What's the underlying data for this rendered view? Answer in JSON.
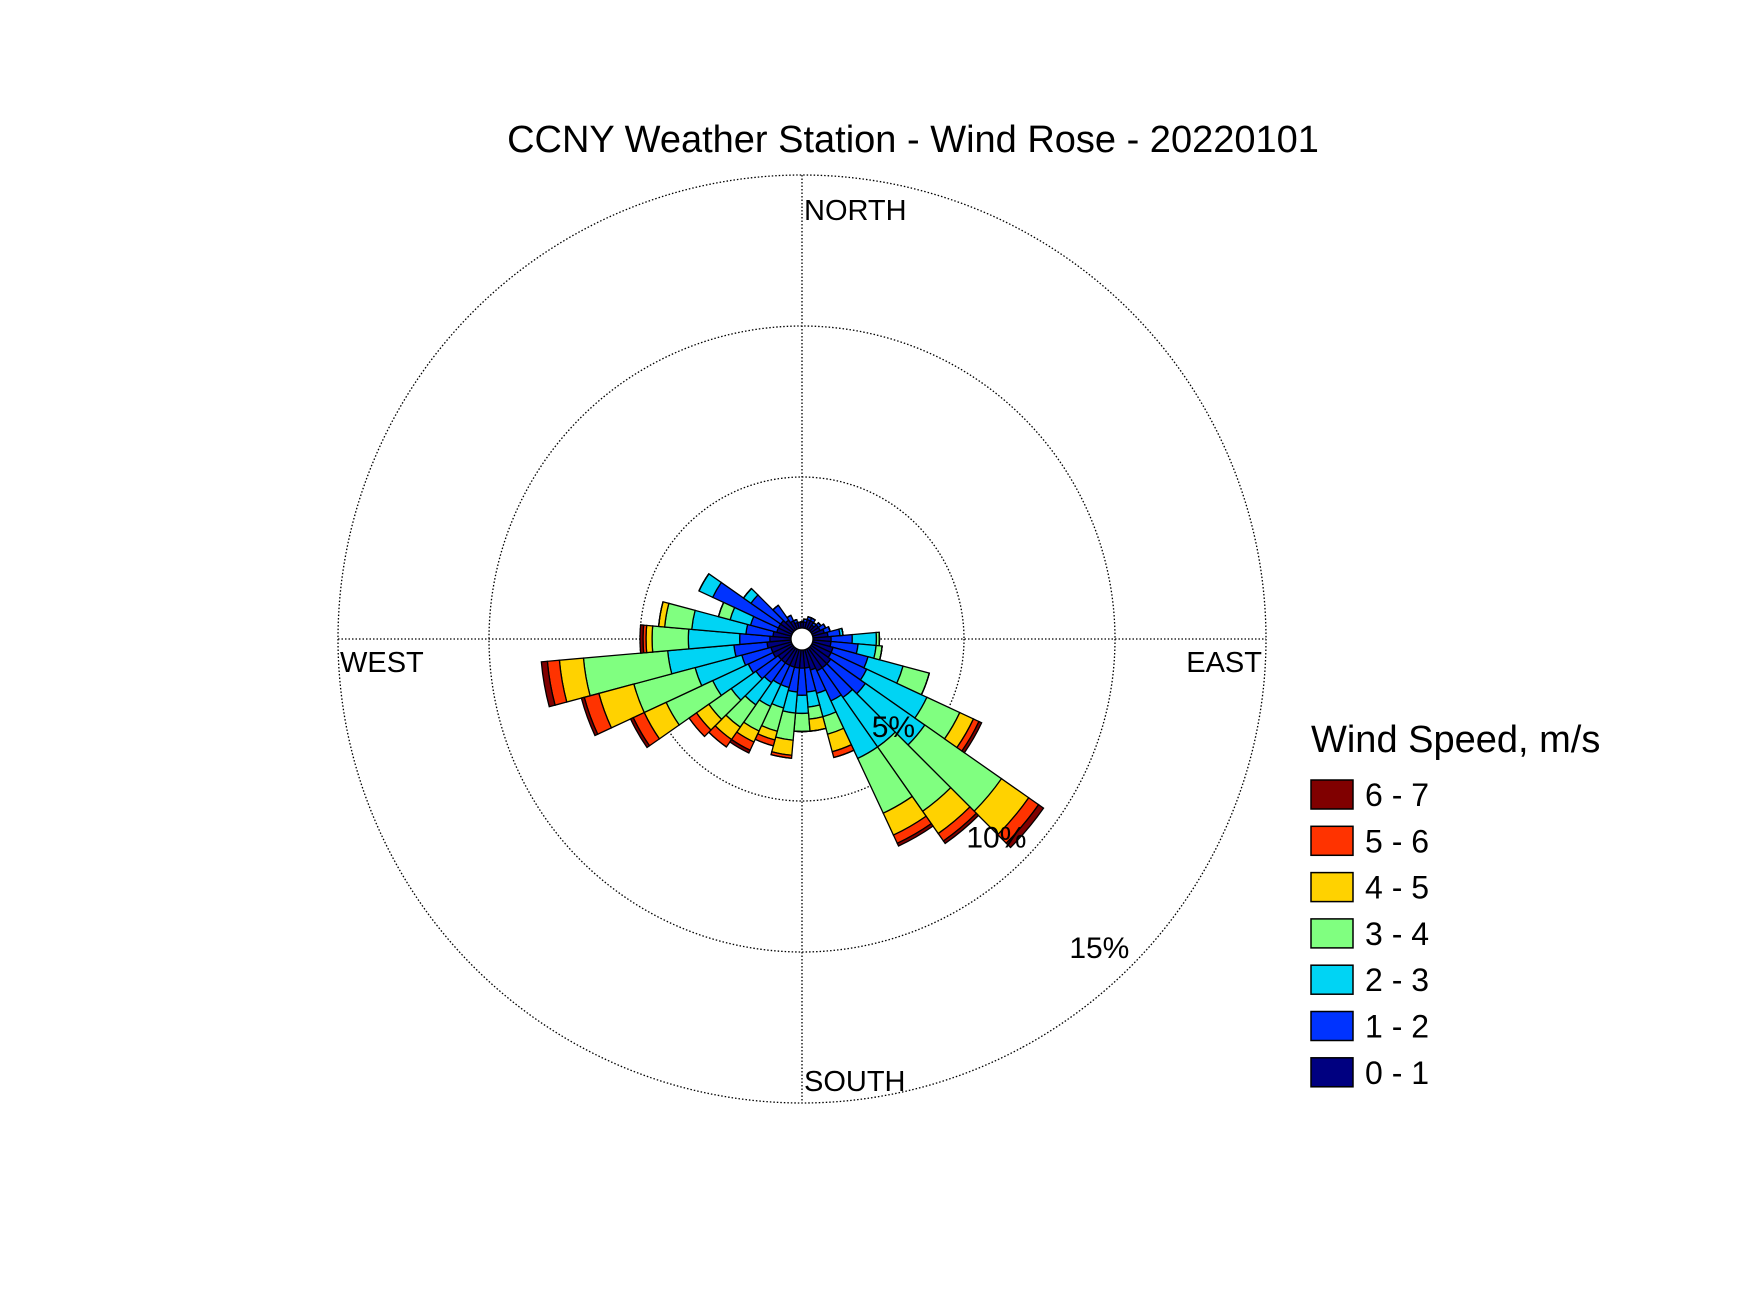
{
  "chart_data": {
    "type": "windrose",
    "title": "CCNY Weather Station - Wind Rose - 20220101",
    "cardinals": [
      "NORTH",
      "EAST",
      "SOUTH",
      "WEST"
    ],
    "legend_title": "Wind Speed, m/s",
    "directions": [
      0,
      10,
      20,
      30,
      40,
      50,
      60,
      70,
      80,
      90,
      100,
      110,
      120,
      130,
      140,
      150,
      160,
      170,
      180,
      190,
      200,
      210,
      220,
      230,
      240,
      250,
      260,
      270,
      280,
      290,
      300,
      310,
      320,
      330,
      340,
      350
    ],
    "rlim": [
      0,
      15
    ],
    "rticks": [
      {
        "value": 5,
        "label": "5%"
      },
      {
        "value": 10,
        "label": "10%"
      },
      {
        "value": 15,
        "label": "15%"
      }
    ],
    "grid": true,
    "series": [
      {
        "name": "0 - 1",
        "color": "#000080",
        "values": [
          0.2,
          0.2,
          0.3,
          0.3,
          0.2,
          0.3,
          0.3,
          0.4,
          0.5,
          0.6,
          0.6,
          0.7,
          0.7,
          0.8,
          0.8,
          0.8,
          0.7,
          0.6,
          0.6,
          0.6,
          0.6,
          0.6,
          0.6,
          0.6,
          0.7,
          0.7,
          0.8,
          0.7,
          0.6,
          0.5,
          0.5,
          0.5,
          0.4,
          0.3,
          0.2,
          0.2
        ]
      },
      {
        "name": "1 - 2",
        "color": "#0033ff",
        "values": [
          0,
          0.1,
          0.1,
          0.1,
          0.1,
          0.1,
          0.2,
          0.2,
          0.4,
          0.7,
          0.9,
          1.2,
          1.3,
          1.4,
          1.2,
          1.1,
          0.8,
          0.8,
          0.9,
          0.8,
          0.7,
          0.7,
          0.8,
          0.9,
          0.9,
          1.0,
          1.1,
          1.0,
          0.9,
          0.9,
          2.4,
          1.2,
          0.6,
          0.2,
          0.1,
          0
        ]
      },
      {
        "name": "2 - 3",
        "color": "#00d4f4",
        "values": [
          0,
          0,
          0,
          0,
          0,
          0,
          0,
          0,
          0.1,
          0.8,
          0.6,
          1.2,
          2.2,
          2.4,
          2.0,
          2.1,
          0.8,
          0.5,
          0.6,
          0.7,
          0.7,
          0.8,
          0.9,
          1.0,
          1.3,
          1.6,
          2.2,
          1.7,
          1.8,
          0.7,
          0.5,
          0.3,
          0,
          0,
          0,
          0
        ]
      },
      {
        "name": "3 - 4",
        "color": "#80ff80",
        "values": [
          0,
          0,
          0,
          0,
          0,
          0,
          0,
          0,
          0,
          0.1,
          0.2,
          0.9,
          1.2,
          3.1,
          2.6,
          2.0,
          0.6,
          0.4,
          0.6,
          0.9,
          0.8,
          0.9,
          0.9,
          0.9,
          1.7,
          2.1,
          2.8,
          1.2,
          0.9,
          0.4,
          0,
          0,
          0,
          0,
          0,
          0
        ]
      },
      {
        "name": "4 - 5",
        "color": "#ffd200",
        "values": [
          0,
          0,
          0,
          0,
          0,
          0,
          0,
          0,
          0,
          0,
          0,
          0,
          0.5,
          1.1,
          0.9,
          0.8,
          0.6,
          0.4,
          0,
          0.5,
          0.3,
          0.4,
          0.5,
          0.5,
          0.8,
          1.2,
          0.8,
          0.2,
          0.2,
          0,
          0,
          0,
          0,
          0,
          0,
          0
        ]
      },
      {
        "name": "5 - 6",
        "color": "#ff3300",
        "values": [
          0,
          0,
          0,
          0,
          0,
          0,
          0,
          0,
          0,
          0,
          0,
          0,
          0.2,
          0.4,
          0.3,
          0.3,
          0.2,
          0,
          0,
          0.1,
          0.2,
          0.3,
          0.3,
          0.3,
          0.4,
          0.5,
          0.4,
          0.1,
          0,
          0,
          0,
          0,
          0,
          0,
          0,
          0
        ]
      },
      {
        "name": "6 - 7",
        "color": "#800000",
        "values": [
          0,
          0,
          0,
          0,
          0,
          0,
          0,
          0,
          0,
          0,
          0,
          0,
          0.1,
          0.2,
          0.1,
          0.1,
          0,
          0,
          0,
          0,
          0,
          0.1,
          0,
          0,
          0.1,
          0.1,
          0.2,
          0.1,
          0,
          0,
          0,
          0,
          0,
          0,
          0,
          0
        ]
      }
    ]
  }
}
